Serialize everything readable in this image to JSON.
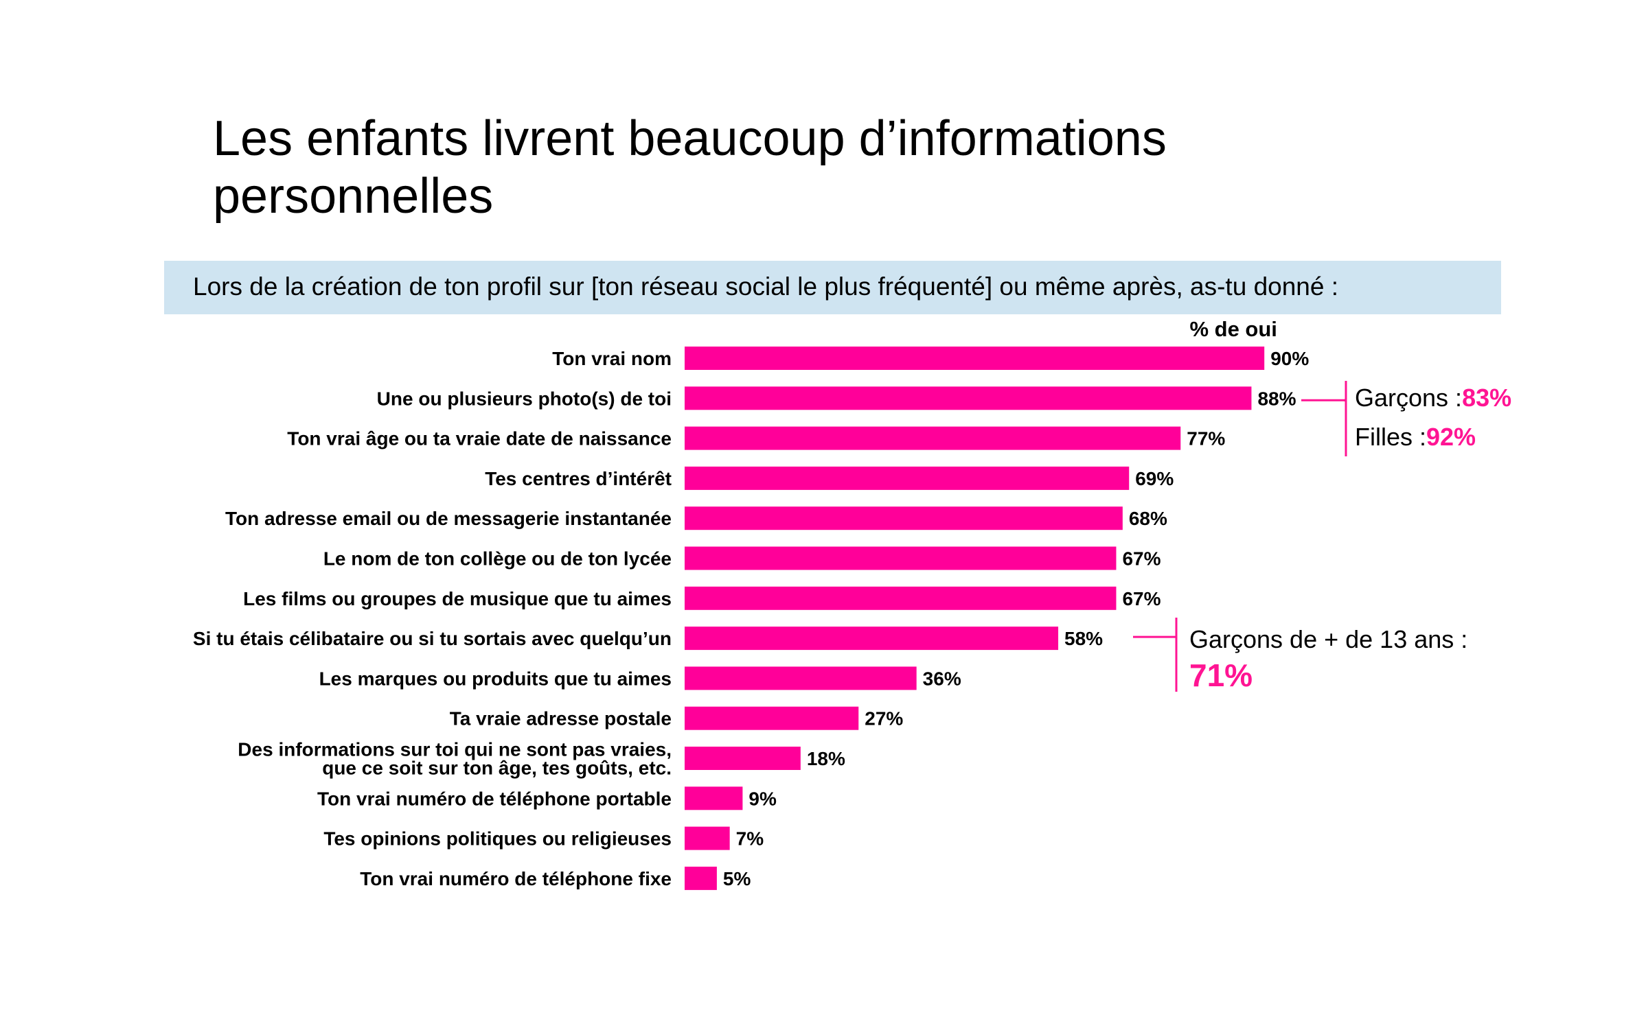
{
  "title": "Les enfants livrent beaucoup d’informations personnelles",
  "question": "Lors de la création de ton profil sur [ton réseau social le plus fréquenté] ou même après, as-tu donné :",
  "colors": {
    "bar": "#ff0099",
    "accent": "#ff1493",
    "question_bg": "#cfe4f1"
  },
  "chart_data": {
    "type": "bar",
    "orientation": "horizontal",
    "value_header": "% de oui",
    "categories": [
      "Ton vrai nom",
      "Une ou plusieurs photo(s) de toi",
      "Ton vrai âge ou ta vraie date de naissance",
      "Tes centres d’intérêt",
      "Ton adresse email ou de messagerie instantanée",
      "Le nom de ton collège ou de ton lycée",
      "Les films ou groupes de musique que tu aimes",
      "Si tu étais célibataire ou si tu sortais avec quelqu’un",
      "Les marques ou produits que tu aimes",
      "Ta vraie adresse postale",
      "Des informations sur toi qui ne sont pas vraies,\nque ce soit sur ton âge, tes goûts, etc.",
      "Ton vrai numéro de téléphone portable",
      "Tes opinions politiques ou religieuses",
      "Ton vrai numéro de téléphone fixe"
    ],
    "values": [
      90,
      88,
      77,
      69,
      68,
      67,
      67,
      58,
      36,
      27,
      18,
      9,
      7,
      5
    ],
    "value_labels": [
      "90%",
      "88%",
      "77%",
      "69%",
      "68%",
      "67%",
      "67%",
      "58%",
      "36%",
      "27%",
      "18%",
      "9%",
      "7%",
      "5%"
    ],
    "xlim": [
      0,
      100
    ],
    "grid": false,
    "annotations": [
      {
        "target_rows": [
          1,
          2
        ],
        "lines": [
          {
            "label": "Garçons :",
            "value": "83%"
          },
          {
            "label": "Filles :",
            "value": "92%"
          }
        ]
      },
      {
        "target_rows": [
          7
        ],
        "lines": [
          {
            "label": "Garçons de + de 13 ans :",
            "value": ""
          },
          {
            "label": "",
            "value": "71%"
          }
        ]
      }
    ]
  }
}
